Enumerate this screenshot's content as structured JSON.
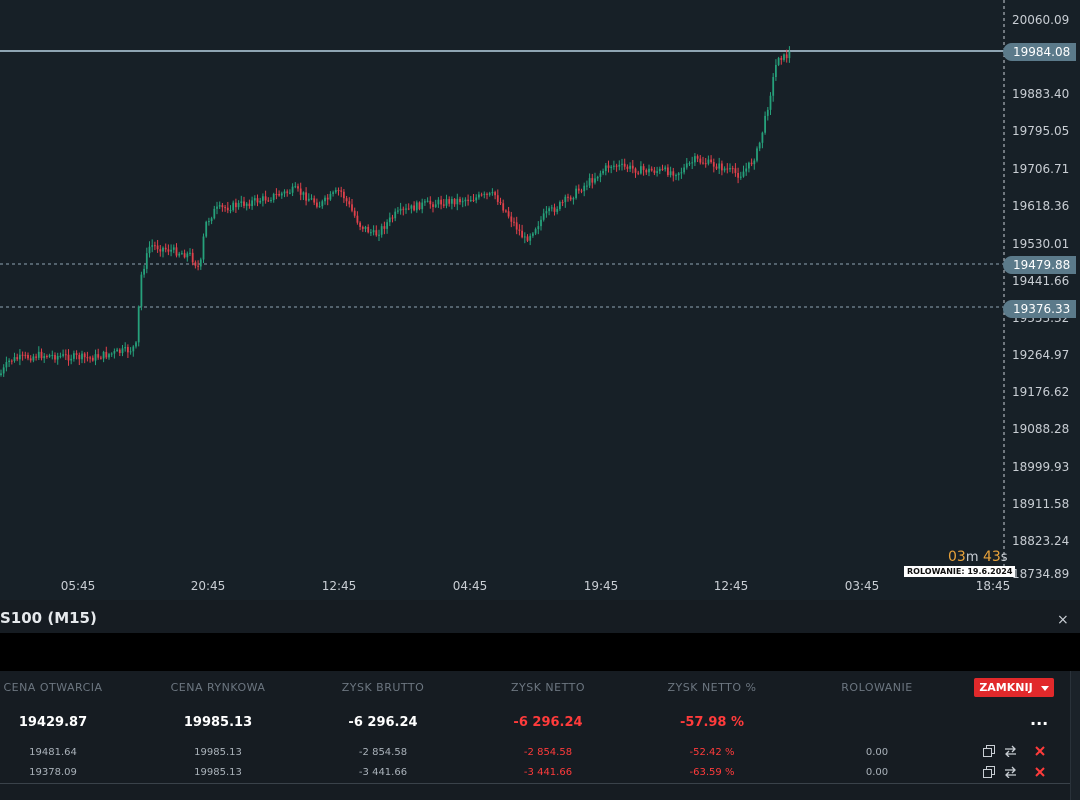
{
  "chart": {
    "y_ticks": [
      "20060.09",
      "19883.40",
      "19795.05",
      "19706.71",
      "19618.36",
      "19530.01",
      "19441.66",
      "19353.32",
      "19264.97",
      "19176.62",
      "19088.28",
      "18999.93",
      "18911.58",
      "18823.24",
      "18734.89"
    ],
    "x_ticks": [
      "05:45",
      "20:45",
      "12:45",
      "04:45",
      "19:45",
      "12:45",
      "03:45",
      "18:45"
    ],
    "current_price": "19984.08",
    "position_prices": [
      "19479.88",
      "19376.33"
    ],
    "countdown_minutes": "03",
    "countdown_minutes_unit": "m",
    "countdown_seconds": "43",
    "countdown_seconds_unit": "s",
    "rollover_badge": "ROLOWANIE: 19.6.2024",
    "colors": {
      "up": "#26a17b",
      "down": "#e0414b",
      "price_line": "#8fa5b3",
      "background": "#172027"
    }
  },
  "symbol_bar": {
    "title": "S100 (M15)",
    "close_label": "×"
  },
  "positions": {
    "headers": [
      "CENA OTWARCIA",
      "CENA RYNKOWA",
      "ZYSK BRUTTO",
      "ZYSK NETTO",
      "ZYSK NETTO %",
      "ROLOWANIE"
    ],
    "close_button": "ZAMKNIJ",
    "more_label": "...",
    "summary": {
      "open": "19429.87",
      "market": "19985.13",
      "gross": "-6 296.24",
      "net": "-6 296.24",
      "net_pct": "-57.98 %"
    },
    "rows": [
      {
        "open": "19481.64",
        "market": "19985.13",
        "gross": "-2 854.58",
        "net": "-2 854.58",
        "net_pct": "-52.42 %",
        "rollover": "0.00"
      },
      {
        "open": "19378.09",
        "market": "19985.13",
        "gross": "-3 441.66",
        "net": "-3 441.66",
        "net_pct": "-63.59 %",
        "rollover": "0.00"
      }
    ],
    "row_action_icons": [
      "copy-icon",
      "reverse-icon",
      "close-icon"
    ]
  }
}
